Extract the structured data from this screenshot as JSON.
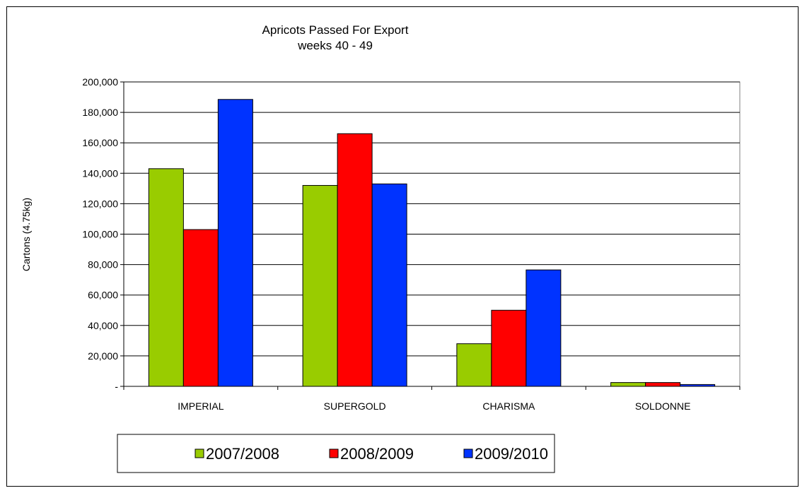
{
  "chart_data": {
    "type": "bar",
    "title": "Apricots Passed For Export",
    "subtitle": "weeks 40 - 49",
    "xlabel": "",
    "ylabel": "Cartons (4.75kg)",
    "ylim": [
      0,
      200000
    ],
    "yticks": [
      0,
      20000,
      40000,
      60000,
      80000,
      100000,
      120000,
      140000,
      160000,
      180000,
      200000
    ],
    "ytick_labels": [
      "-",
      "20,000",
      "40,000",
      "60,000",
      "80,000",
      "100,000",
      "120,000",
      "140,000",
      "160,000",
      "180,000",
      "200,000"
    ],
    "grid": true,
    "legend_position": "bottom",
    "categories": [
      "IMPERIAL",
      "SUPERGOLD",
      "CHARISMA",
      "SOLDONNE"
    ],
    "series": [
      {
        "name": "2007/2008",
        "color": "#99cc00",
        "values": [
          143000,
          132000,
          28000,
          2500
        ]
      },
      {
        "name": "2008/2009",
        "color": "#ff0000",
        "values": [
          103000,
          166000,
          50000,
          2500
        ]
      },
      {
        "name": "2009/2010",
        "color": "#0033ff",
        "values": [
          188500,
          133000,
          76500,
          1200
        ]
      }
    ]
  }
}
